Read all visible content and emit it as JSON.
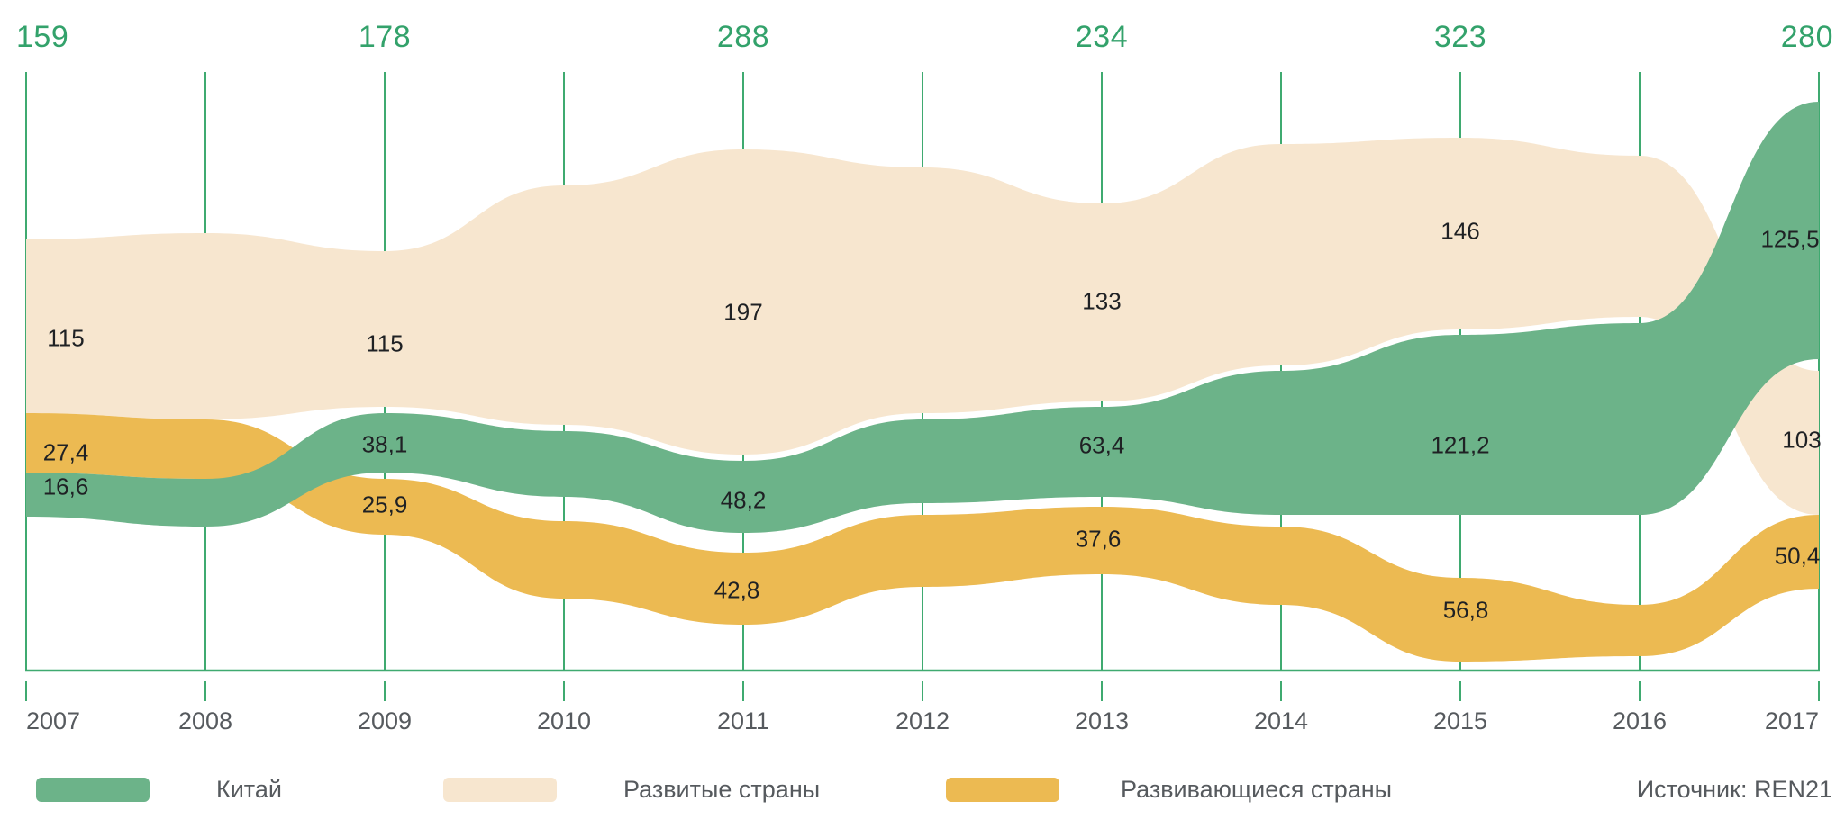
{
  "chart_data": {
    "type": "area",
    "variant": "streamgraph",
    "x_labels": [
      "2007",
      "2008",
      "2009",
      "2010",
      "2011",
      "2012",
      "2013",
      "2014",
      "2015",
      "2016",
      "2017"
    ],
    "labeled_years": [
      2007,
      2009,
      2011,
      2013,
      2015,
      2017
    ],
    "totals": {
      "values": [
        159,
        178,
        288,
        234,
        323,
        280
      ],
      "labels": [
        "159",
        "178",
        "288",
        "234",
        "323",
        "280"
      ]
    },
    "series": [
      {
        "name": "Китай",
        "color": "#6cb389",
        "values": [
          16.6,
          38.1,
          48.2,
          63.4,
          121.2,
          125.5
        ],
        "labels": [
          "16,6",
          "38,1",
          "48,2",
          "63,4",
          "121,2",
          "125,5"
        ]
      },
      {
        "name": "Развитые страны",
        "color": "#f7e6cf",
        "values": [
          115,
          115,
          197,
          133,
          146,
          103
        ],
        "labels": [
          "115",
          "115",
          "197",
          "133",
          "146",
          "103"
        ]
      },
      {
        "name": "Развивающиеся страны",
        "color": "#ecba52",
        "values": [
          27.4,
          25.9,
          42.8,
          37.6,
          56.8,
          50.4
        ],
        "labels": [
          "27,4",
          "25,9",
          "42,8",
          "37,6",
          "56,8",
          "50,4"
        ]
      }
    ],
    "legend_position": "bottom",
    "grid": true,
    "grid_color": "#3faa70",
    "totals_color": "#33a26b",
    "source": "Источник: REN21"
  }
}
